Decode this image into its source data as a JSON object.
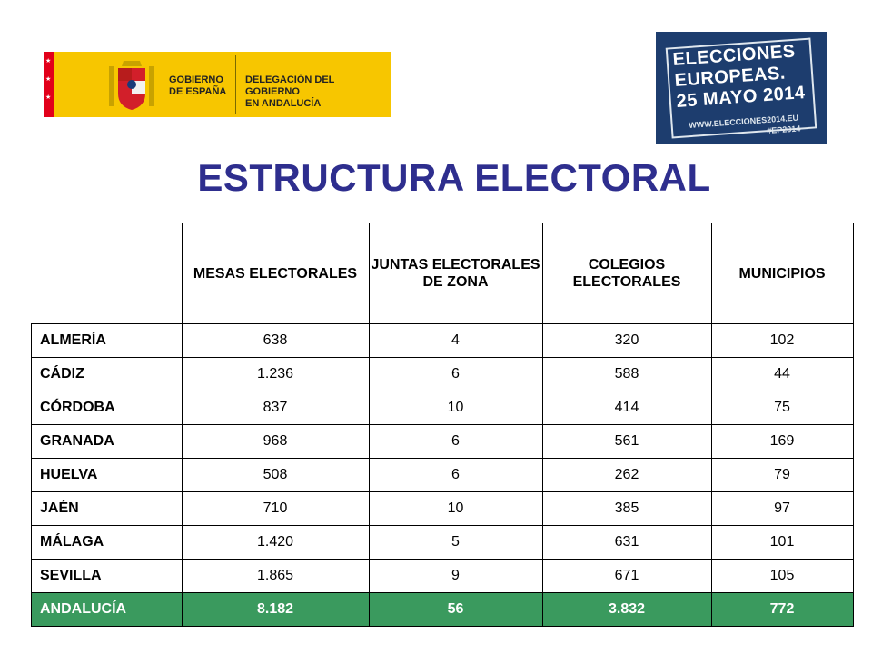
{
  "header": {
    "gov_logo": {
      "line1": "GOBIERNO",
      "line2": "DE ESPAÑA",
      "line3": "DELEGACIÓN DEL GOBIERNO",
      "line4": "EN ANDALUCÍA"
    },
    "ep_badge": {
      "line1": "ELECCIONES",
      "line2": "EUROPEAS.",
      "line3": "25 MAYO 2014",
      "line4": "WWW.ELECCIONES2014.EU",
      "line5": "#EP2014"
    }
  },
  "title": "ESTRUCTURA ELECTORAL",
  "table": {
    "columns": [
      "MESAS ELECTORALES",
      "JUNTAS ELECTORALES DE ZONA",
      "COLEGIOS ELECTORALES",
      "MUNICIPIOS"
    ],
    "rows": [
      {
        "name": "ALMERÍA",
        "values": [
          "638",
          "4",
          "320",
          "102"
        ]
      },
      {
        "name": "CÁDIZ",
        "values": [
          "1.236",
          "6",
          "588",
          "44"
        ]
      },
      {
        "name": "CÓRDOBA",
        "values": [
          "837",
          "10",
          "414",
          "75"
        ]
      },
      {
        "name": "GRANADA",
        "values": [
          "968",
          "6",
          "561",
          "169"
        ]
      },
      {
        "name": "HUELVA",
        "values": [
          "508",
          "6",
          "262",
          "79"
        ]
      },
      {
        "name": "JAÉN",
        "values": [
          "710",
          "10",
          "385",
          "97"
        ]
      },
      {
        "name": "MÁLAGA",
        "values": [
          "1.420",
          "5",
          "631",
          "101"
        ]
      },
      {
        "name": "SEVILLA",
        "values": [
          "1.865",
          "9",
          "671",
          "105"
        ]
      }
    ],
    "total": {
      "name": "ANDALUCÍA",
      "values": [
        "8.182",
        "56",
        "3.832",
        "772"
      ]
    }
  },
  "colors": {
    "title": "#2e2e8e",
    "total_row": "#3a9a5e",
    "logo_yellow": "#f7c600",
    "badge_blue": "#1d3d6e"
  }
}
